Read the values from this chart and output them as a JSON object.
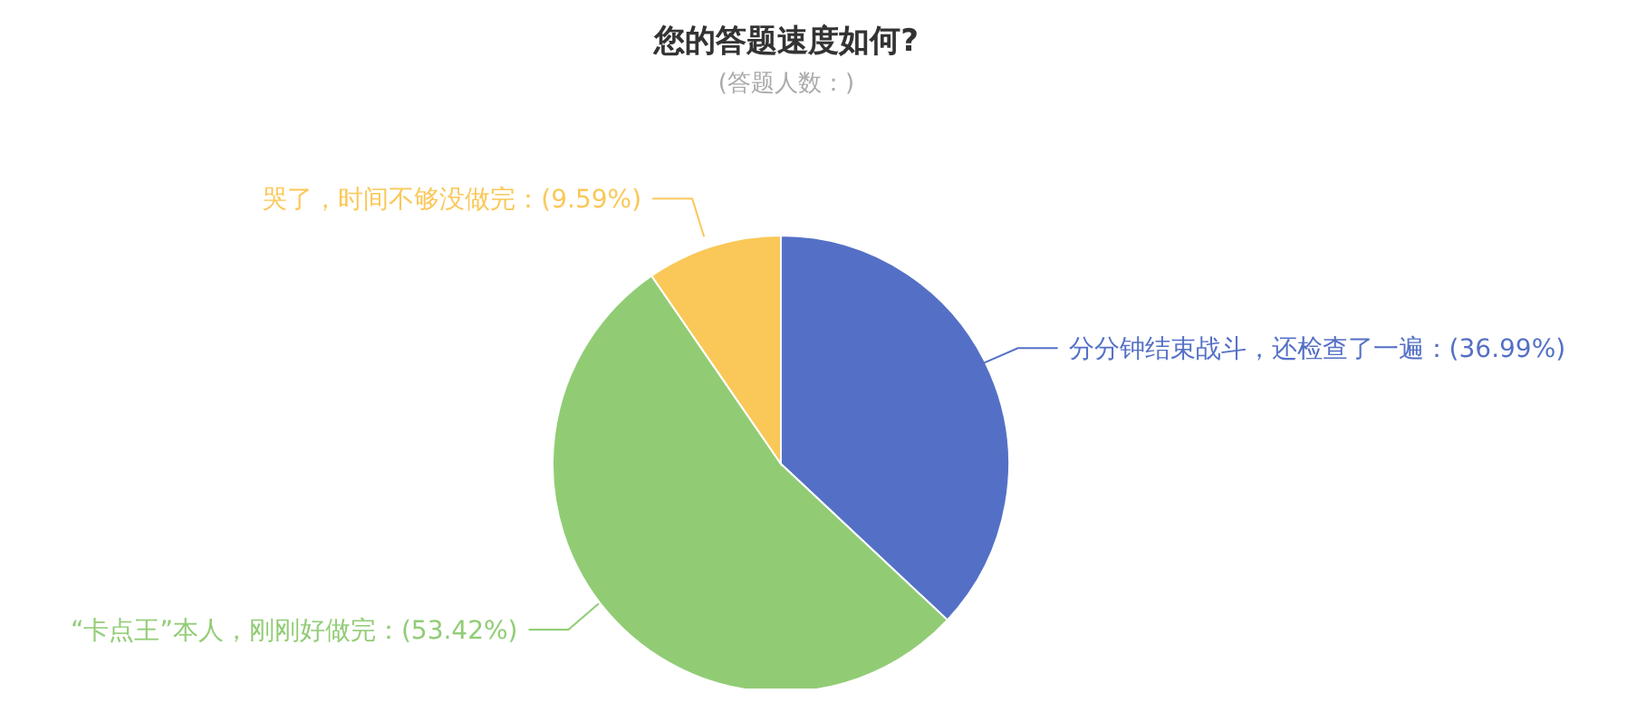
{
  "chart_data": {
    "type": "pie",
    "title": "您的答题速度如何?",
    "subtitle": "(答题人数：)",
    "categories": [
      "分分钟结束战斗，还检查了一遍",
      "“卡点王”本人，刚刚好做完",
      "哭了，时间不够没做完"
    ],
    "values": [
      36.99,
      53.42,
      9.59
    ],
    "value_labels": [
      "(36.99%)",
      "(53.42%)",
      "(9.59%)"
    ],
    "colors": [
      "#5470c6",
      "#91cc75",
      "#fac858"
    ],
    "legend": false
  }
}
